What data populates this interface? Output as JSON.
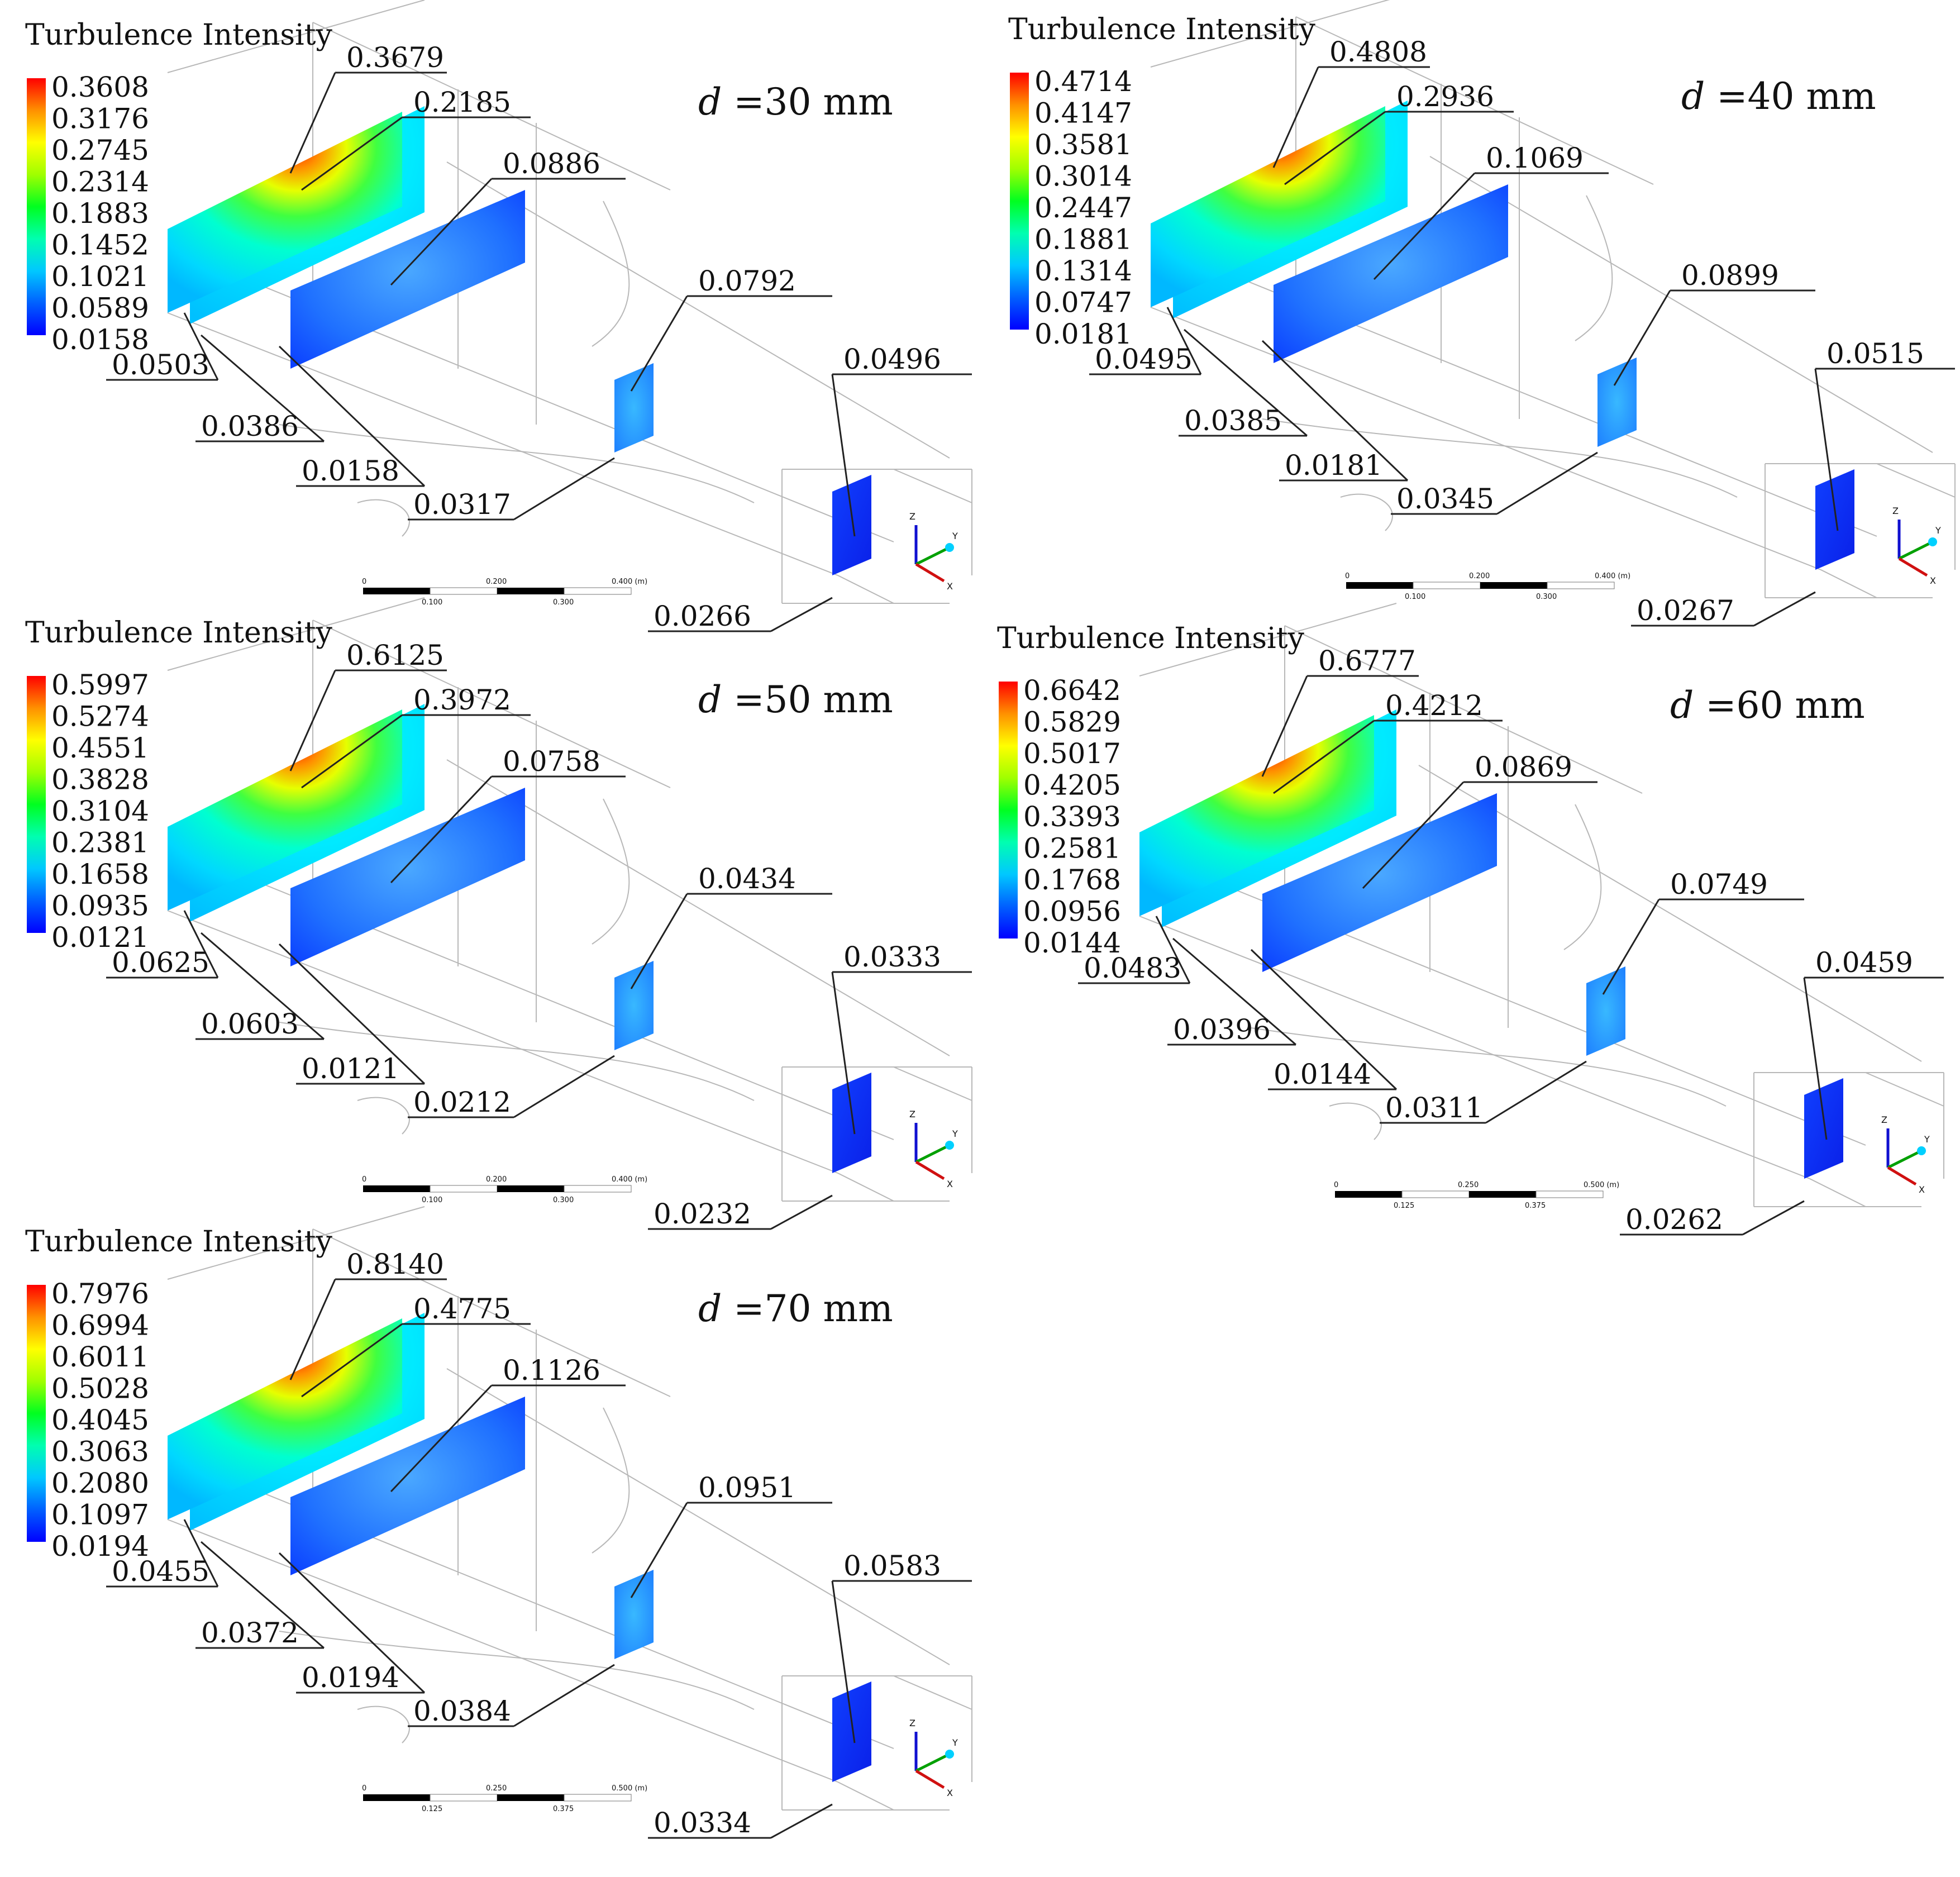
{
  "figure": {
    "legend_title": "Turbulence Intensity",
    "d_symbol": "d",
    "colormap": [
      "#0000ff",
      "#00a0ff",
      "#00ffff",
      "#00ff70",
      "#70ff00",
      "#ffff00",
      "#ffa000",
      "#ff3000",
      "#ff0000"
    ],
    "panels": [
      {
        "id": "d30",
        "case_label": "=30 mm",
        "legend_ticks": [
          "0.3608",
          "0.3176",
          "0.2745",
          "0.2314",
          "0.1883",
          "0.1452",
          "0.1021",
          "0.0589",
          "0.0158"
        ],
        "annotations": {
          "peak": "0.3679",
          "plane2": "0.2185",
          "plane3": "0.0886",
          "plane4": "0.0792",
          "plane5": "0.0496",
          "low1": "0.0503",
          "low2": "0.0386",
          "low3": "0.0158",
          "low4": "0.0317",
          "low5": "0.0266"
        },
        "scalebar": {
          "top": [
            "0",
            "0.200",
            "0.400 (m)"
          ],
          "bottom": [
            "0.100",
            "0.300"
          ]
        }
      },
      {
        "id": "d40",
        "case_label": "=40 mm",
        "legend_ticks": [
          "0.4714",
          "0.4147",
          "0.3581",
          "0.3014",
          "0.2447",
          "0.1881",
          "0.1314",
          "0.0747",
          "0.0181"
        ],
        "annotations": {
          "peak": "0.4808",
          "plane2": "0.2936",
          "plane3": "0.1069",
          "plane4": "0.0899",
          "plane5": "0.0515",
          "low1": "0.0495",
          "low2": "0.0385",
          "low3": "0.0181",
          "low4": "0.0345",
          "low5": "0.0267"
        },
        "scalebar": {
          "top": [
            "0",
            "0.200",
            "0.400 (m)"
          ],
          "bottom": [
            "0.100",
            "0.300"
          ]
        }
      },
      {
        "id": "d50",
        "case_label": "=50 mm",
        "legend_ticks": [
          "0.5997",
          "0.5274",
          "0.4551",
          "0.3828",
          "0.3104",
          "0.2381",
          "0.1658",
          "0.0935",
          "0.0121"
        ],
        "annotations": {
          "peak": "0.6125",
          "plane2": "0.3972",
          "plane3": "0.0758",
          "plane4": "0.0434",
          "plane5": "0.0333",
          "low1": "0.0625",
          "low2": "0.0603",
          "low3": "0.0121",
          "low4": "0.0212",
          "low5": "0.0232"
        },
        "scalebar": {
          "top": [
            "0",
            "0.200",
            "0.400 (m)"
          ],
          "bottom": [
            "0.100",
            "0.300"
          ]
        }
      },
      {
        "id": "d60",
        "case_label": "=60 mm",
        "legend_ticks": [
          "0.6642",
          "0.5829",
          "0.5017",
          "0.4205",
          "0.3393",
          "0.2581",
          "0.1768",
          "0.0956",
          "0.0144"
        ],
        "annotations": {
          "peak": "0.6777",
          "plane2": "0.4212",
          "plane3": "0.0869",
          "plane4": "0.0749",
          "plane5": "0.0459",
          "low1": "0.0483",
          "low2": "0.0396",
          "low3": "0.0144",
          "low4": "0.0311",
          "low5": "0.0262"
        },
        "scalebar": {
          "top": [
            "0",
            "0.250",
            "0.500 (m)"
          ],
          "bottom": [
            "0.125",
            "0.375"
          ]
        }
      },
      {
        "id": "d70",
        "case_label": "=70 mm",
        "legend_ticks": [
          "0.7976",
          "0.6994",
          "0.6011",
          "0.5028",
          "0.4045",
          "0.3063",
          "0.2080",
          "0.1097",
          "0.0194"
        ],
        "annotations": {
          "peak": "0.8140",
          "plane2": "0.4775",
          "plane3": "0.1126",
          "plane4": "0.0951",
          "plane5": "0.0583",
          "low1": "0.0455",
          "low2": "0.0372",
          "low3": "0.0194",
          "low4": "0.0384",
          "low5": "0.0334"
        },
        "scalebar": {
          "top": [
            "0",
            "0.250",
            "0.500 (m)"
          ],
          "bottom": [
            "0.125",
            "0.375"
          ]
        }
      }
    ]
  }
}
